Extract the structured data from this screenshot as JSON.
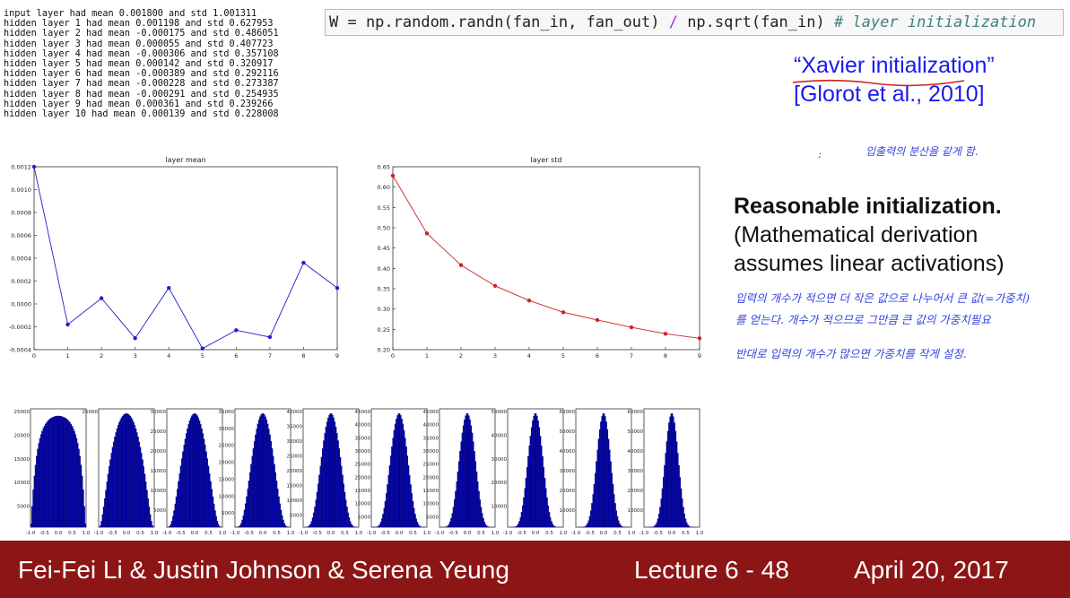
{
  "stats_lines": [
    "input layer had mean 0.001800 and std 1.001311",
    "hidden layer 1 had mean 0.001198 and std 0.627953",
    "hidden layer 2 had mean -0.000175 and std 0.486051",
    "hidden layer 3 had mean 0.000055 and std 0.407723",
    "hidden layer 4 had mean -0.000306 and std 0.357108",
    "hidden layer 5 had mean 0.000142 and std 0.320917",
    "hidden layer 6 had mean -0.000389 and std 0.292116",
    "hidden layer 7 had mean -0.000228 and std 0.273387",
    "hidden layer 8 had mean -0.000291 and std 0.254935",
    "hidden layer 9 had mean 0.000361 and std 0.239266",
    "hidden layer 10 had mean 0.000139 and std 0.228008"
  ],
  "code": {
    "part1": "W = np.random.randn(fan_in, fan_out) ",
    "op": "/",
    "part2": " np.sqrt(fan_in) ",
    "comment": "# layer initialization"
  },
  "xavier": {
    "line1": "“Xavier initialization”",
    "line2": "[Glorot et al., 2010]"
  },
  "handnotes": {
    "note1": "입출력의 분산을 같게 함.",
    "note2": "입력의 개수가 적으면 더 작은 값으로 나누어서 큰 값(=가중치)",
    "note3": "를 얻는다. 개수가 적으므로 그만큼 큰 값의 가중치필요",
    "note4": "반대로 입력의 개수가 많으면 가중치를 작게 설정."
  },
  "reasonable": {
    "line1": "Reasonable initialization.",
    "line2": "(Mathematical derivation",
    "line3": "assumes linear activations)"
  },
  "footer": {
    "authors": "Fei-Fei Li & Justin Johnson & Serena Yeung",
    "lecture": "Lecture 6 - 48",
    "date": "April 20, 2017",
    "bg_color": "#8c1515"
  },
  "chart_data": [
    {
      "type": "line",
      "title": "layer mean",
      "x": [
        0,
        1,
        2,
        3,
        4,
        5,
        6,
        7,
        8,
        9
      ],
      "values": [
        0.0012,
        -0.00018,
        5e-05,
        -0.0003,
        0.00014,
        -0.00039,
        -0.00023,
        -0.00029,
        0.00036,
        0.00014
      ],
      "ylim": [
        -0.0004,
        0.0012
      ],
      "yticks": [
        "0.0012",
        "0.0010",
        "0.0008",
        "0.0006",
        "0.0004",
        "0.0002",
        "0.0000",
        "-0.0002",
        "-0.0004"
      ],
      "xticks": [
        "0",
        "1",
        "2",
        "3",
        "4",
        "5",
        "6",
        "7",
        "8",
        "9"
      ],
      "color": "#1f1fcc"
    },
    {
      "type": "line",
      "title": "layer std",
      "x": [
        0,
        1,
        2,
        3,
        4,
        5,
        6,
        7,
        8,
        9
      ],
      "values": [
        0.628,
        0.486,
        0.408,
        0.357,
        0.321,
        0.292,
        0.273,
        0.255,
        0.239,
        0.228
      ],
      "ylim": [
        0.2,
        0.65
      ],
      "yticks": [
        "0.65",
        "0.60",
        "0.55",
        "0.50",
        "0.45",
        "0.40",
        "0.35",
        "0.30",
        "0.25",
        "0.20"
      ],
      "xticks": [
        "0",
        "1",
        "2",
        "3",
        "4",
        "5",
        "6",
        "7",
        "8",
        "9"
      ],
      "color": "#cc2222"
    },
    {
      "type": "bar",
      "title": "",
      "panels": [
        {
          "ymax": 25000,
          "yticks": [
            "25000",
            "20000",
            "15000",
            "10000",
            "5000"
          ],
          "std": 0.628
        },
        {
          "ymax": 25000,
          "yticks": [
            "25000"
          ],
          "std": 0.486
        },
        {
          "ymax": 30000,
          "yticks": [
            "30000",
            "25000",
            "20000",
            "15000",
            "10000",
            "5000"
          ],
          "std": 0.408
        },
        {
          "ymax": 35000,
          "yticks": [
            "35000",
            "30000",
            "25000",
            "20000",
            "15000",
            "10000",
            "5000"
          ],
          "std": 0.357
        },
        {
          "ymax": 40000,
          "yticks": [
            "40000",
            "35000",
            "30000",
            "25000",
            "20000",
            "15000",
            "10000",
            "5000"
          ],
          "std": 0.321
        },
        {
          "ymax": 45000,
          "yticks": [
            "45000",
            "40000",
            "35000",
            "30000",
            "25000",
            "20000",
            "15000",
            "10000",
            "5000"
          ],
          "std": 0.292
        },
        {
          "ymax": 45000,
          "yticks": [
            "45000",
            "40000",
            "35000",
            "30000",
            "25000",
            "20000",
            "15000",
            "10000",
            "5000"
          ],
          "std": 0.273
        },
        {
          "ymax": 50000,
          "yticks": [
            "50000",
            "40000",
            "30000",
            "20000",
            "10000"
          ],
          "std": 0.255
        },
        {
          "ymax": 60000,
          "yticks": [
            "60000",
            "50000",
            "40000",
            "30000",
            "20000",
            "10000"
          ],
          "std": 0.239
        },
        {
          "ymax": 60000,
          "yticks": [
            "60000",
            "50000",
            "40000",
            "30000",
            "20000",
            "10000"
          ],
          "std": 0.228
        }
      ],
      "xticks": [
        "-1.0",
        "-0.5",
        "0.0",
        "0.5",
        "1.0"
      ],
      "color": "#0000aa"
    }
  ]
}
